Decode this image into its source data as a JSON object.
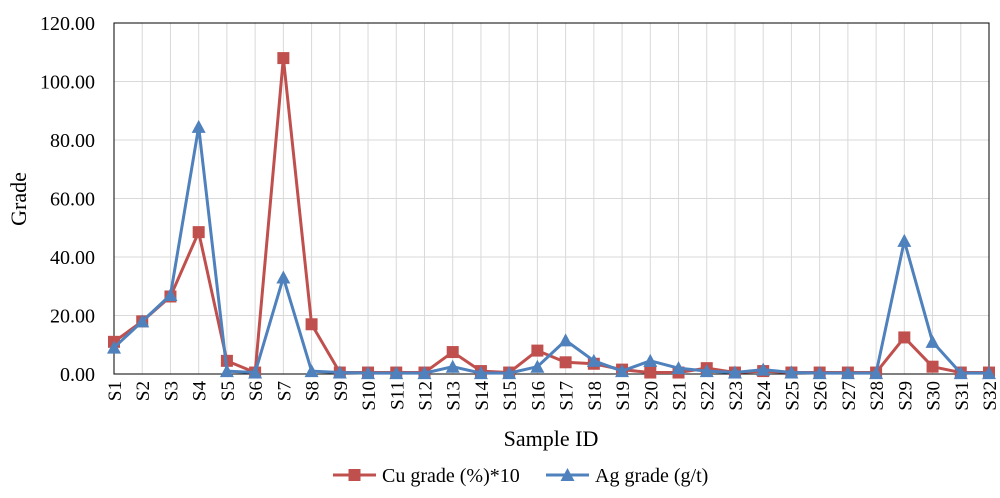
{
  "chart_data": {
    "type": "line",
    "title": "",
    "xlabel": "Sample ID",
    "ylabel": "Grade",
    "ylim": [
      0,
      120
    ],
    "yticks": [
      "0.00",
      "20.00",
      "40.00",
      "60.00",
      "80.00",
      "100.00",
      "120.00"
    ],
    "grid": true,
    "legend_position": "bottom",
    "categories": [
      "S1",
      "S2",
      "S3",
      "S4",
      "S5",
      "S6",
      "S7",
      "S8",
      "S9",
      "S10",
      "S11",
      "S12",
      "S13",
      "S14",
      "S15",
      "S16",
      "S17",
      "S18",
      "S19",
      "S20",
      "S21",
      "S22",
      "S23",
      "S24",
      "S25",
      "S26",
      "S27",
      "S28",
      "S29",
      "S30",
      "S31",
      "S32"
    ],
    "series": [
      {
        "name": "Cu grade (%)*10",
        "color": "#C0504D",
        "marker": "square",
        "values": [
          11.0,
          18.0,
          26.5,
          48.5,
          4.5,
          0.5,
          108.0,
          17.0,
          0.5,
          0.5,
          0.5,
          0.5,
          7.5,
          1.0,
          0.5,
          8.0,
          4.0,
          3.5,
          1.5,
          0.5,
          0.5,
          2.0,
          0.5,
          1.0,
          0.5,
          0.5,
          0.5,
          0.5,
          12.5,
          2.5,
          0.5,
          0.5
        ]
      },
      {
        "name": "Ag grade (g/t)",
        "color": "#4F81BD",
        "marker": "triangle",
        "values": [
          9.0,
          18.0,
          27.0,
          84.5,
          1.0,
          0.5,
          33.0,
          1.0,
          0.5,
          0.3,
          0.3,
          0.3,
          2.5,
          0.3,
          0.3,
          2.5,
          11.5,
          4.5,
          1.0,
          4.5,
          2.0,
          1.0,
          0.5,
          1.5,
          0.5,
          0.3,
          0.3,
          0.3,
          45.5,
          11.0,
          0.3,
          0.3
        ]
      }
    ]
  }
}
